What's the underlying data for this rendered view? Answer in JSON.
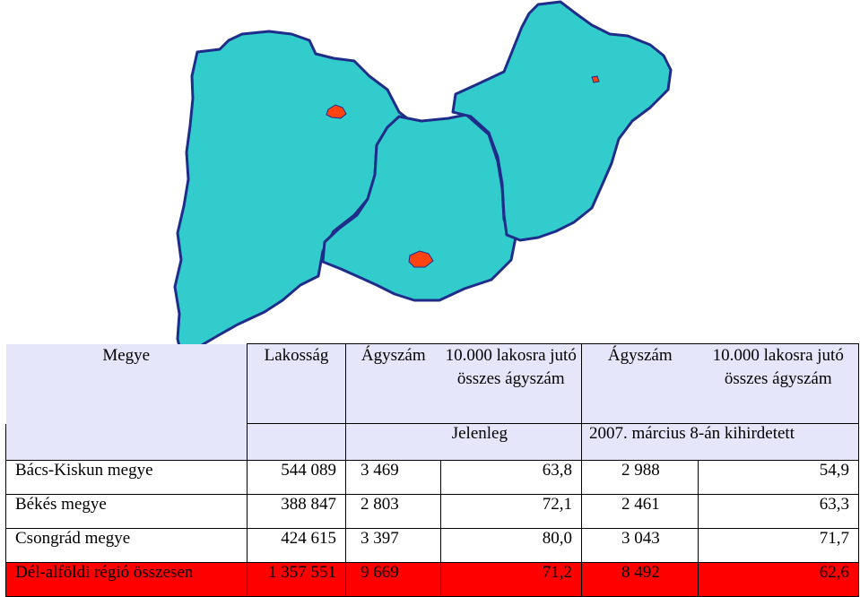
{
  "map": {
    "fill_color": "#33cccc",
    "border_color": "#1f2d8a",
    "city_color": "#ff4411"
  },
  "table": {
    "header": {
      "megye": "Megye",
      "lakossag": "Lakosság",
      "agyszam": "Ágyszám",
      "per10k": "10.000 lakosra jutó összes ágyszám",
      "agyszam2": "Ágyszám",
      "per10k2": "10.000 lakosra jutó összes ágyszám",
      "jelenleg": "Jelenleg",
      "kihirdetett": "2007. március 8-án kihirdetett"
    },
    "rows": [
      {
        "name": "Bács-Kiskun megye",
        "pop": "544 089",
        "beds": "3 469",
        "rate": "63,8",
        "beds2": "2 988",
        "rate2": "54,9"
      },
      {
        "name": "Békés megye",
        "pop": "388 847",
        "beds": "2 803",
        "rate": "72,1",
        "beds2": "2 461",
        "rate2": "63,3"
      },
      {
        "name": "Csongrád megye",
        "pop": "424 615",
        "beds": "3 397",
        "rate": "80,0",
        "beds2": "3 043",
        "rate2": "71,7"
      }
    ],
    "total": {
      "name": "Dél-alföldi régió összesen",
      "pop": "1 357 551",
      "beds": "9 669",
      "rate": "71,2",
      "beds2": "8 492",
      "rate2": "62,6"
    }
  }
}
